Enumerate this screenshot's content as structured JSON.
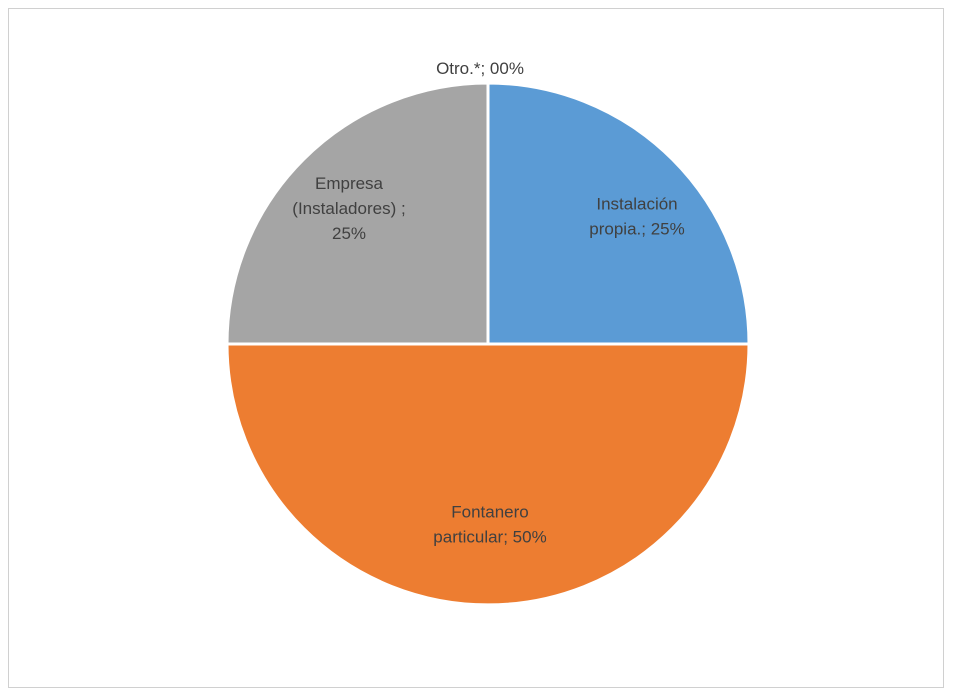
{
  "chart_data": {
    "type": "pie",
    "title": "",
    "series": [
      {
        "values": [
          25,
          50,
          25,
          0
        ]
      }
    ],
    "slices": [
      {
        "category": "Instalación propia.",
        "value": 25,
        "label_lines": [
          "Instalación",
          "propia.; 25%"
        ],
        "color": "#5b9bd5",
        "label_color": "#404040"
      },
      {
        "category": "Fontanero particular",
        "value": 50,
        "label_lines": [
          "Fontanero",
          "particular; 50%"
        ],
        "color": "#ed7d31",
        "label_color": "#404040"
      },
      {
        "category": "Empresa (Instaladores)",
        "value": 25,
        "label_lines": [
          "Empresa",
          "(Instaladores) ;",
          "25%"
        ],
        "color": "#a5a5a5",
        "label_color": "#404040"
      },
      {
        "category": "Otro.*",
        "value": 0,
        "label_lines": [
          "Otro.*; 00%"
        ],
        "color": "#ffc000",
        "label_color": "#404040"
      }
    ],
    "legend": "none"
  }
}
